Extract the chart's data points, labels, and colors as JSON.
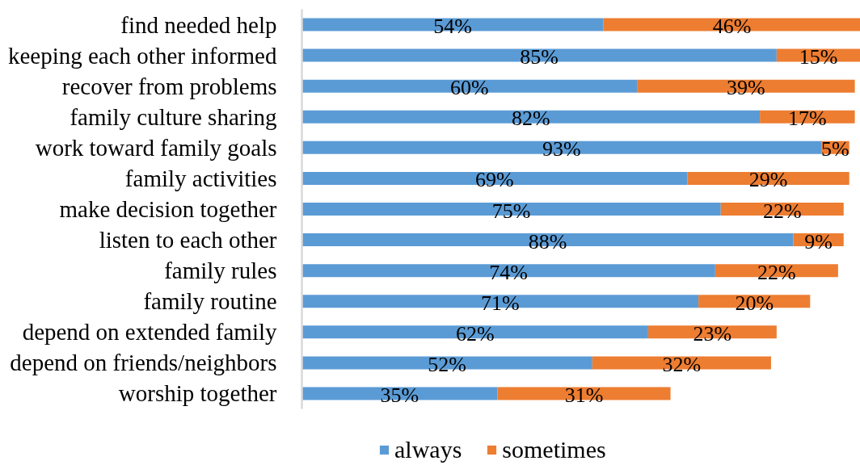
{
  "chart_data": {
    "type": "bar",
    "orientation": "horizontal",
    "stacked": true,
    "categories": [
      "find needed help",
      "keeping each other informed",
      "recover from problems",
      "family culture sharing",
      "work toward family goals",
      "family activities",
      "make decision together",
      "listen to each other",
      "family rules",
      "family routine",
      "depend on extended family",
      "depend on friends/neighbors",
      "worship together"
    ],
    "series": [
      {
        "name": "always",
        "color": "#5b9bd5",
        "values": [
          54,
          85,
          60,
          82,
          93,
          69,
          75,
          88,
          74,
          71,
          62,
          52,
          35
        ],
        "value_labels": [
          "54%",
          "85%",
          "60%",
          "82%",
          "93%",
          "69%",
          "75%",
          "88%",
          "74%",
          "71%",
          "62%",
          "52%",
          "35%"
        ]
      },
      {
        "name": "sometimes",
        "color": "#ed7d31",
        "values": [
          46,
          15,
          39,
          17,
          5,
          29,
          22,
          9,
          22,
          20,
          23,
          32,
          31
        ],
        "value_labels": [
          "46%",
          "15%",
          "39%",
          "17%",
          "5%",
          "29%",
          "22%",
          "9%",
          "22%",
          "20%",
          "23%",
          "32%",
          "31%"
        ]
      }
    ],
    "tick_labels": "y",
    "legend": "bottom"
  }
}
